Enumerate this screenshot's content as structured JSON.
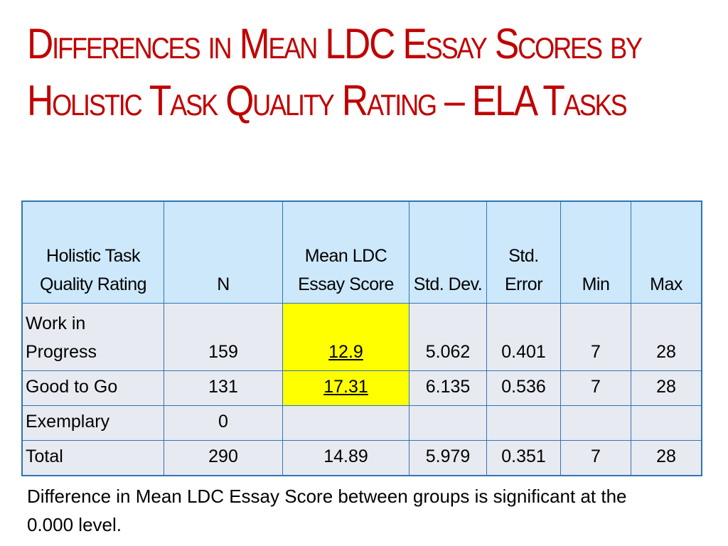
{
  "title": "Differences in Mean LDC Essay Scores by Holistic Task Quality Rating – ELA Tasks",
  "table": {
    "header": [
      "Holistic Task Quality Rating",
      "N",
      "Mean LDC Essay Score",
      "Std. Dev.",
      "Std. Error",
      "Min",
      "Max"
    ],
    "rows": [
      [
        "Work in Progress",
        159,
        12.9,
        5.062,
        0.401,
        7,
        28
      ],
      [
        "Good to Go",
        131,
        17.31,
        6.135,
        0.536,
        7,
        28
      ],
      [
        "Exemplary",
        0,
        null,
        null,
        null,
        null,
        null
      ],
      [
        "Total",
        290,
        14.89,
        5.979,
        0.351,
        7,
        28
      ]
    ]
  },
  "footnote": "Difference in Mean LDC Essay Score between groups is significant at the 0.000 level."
}
